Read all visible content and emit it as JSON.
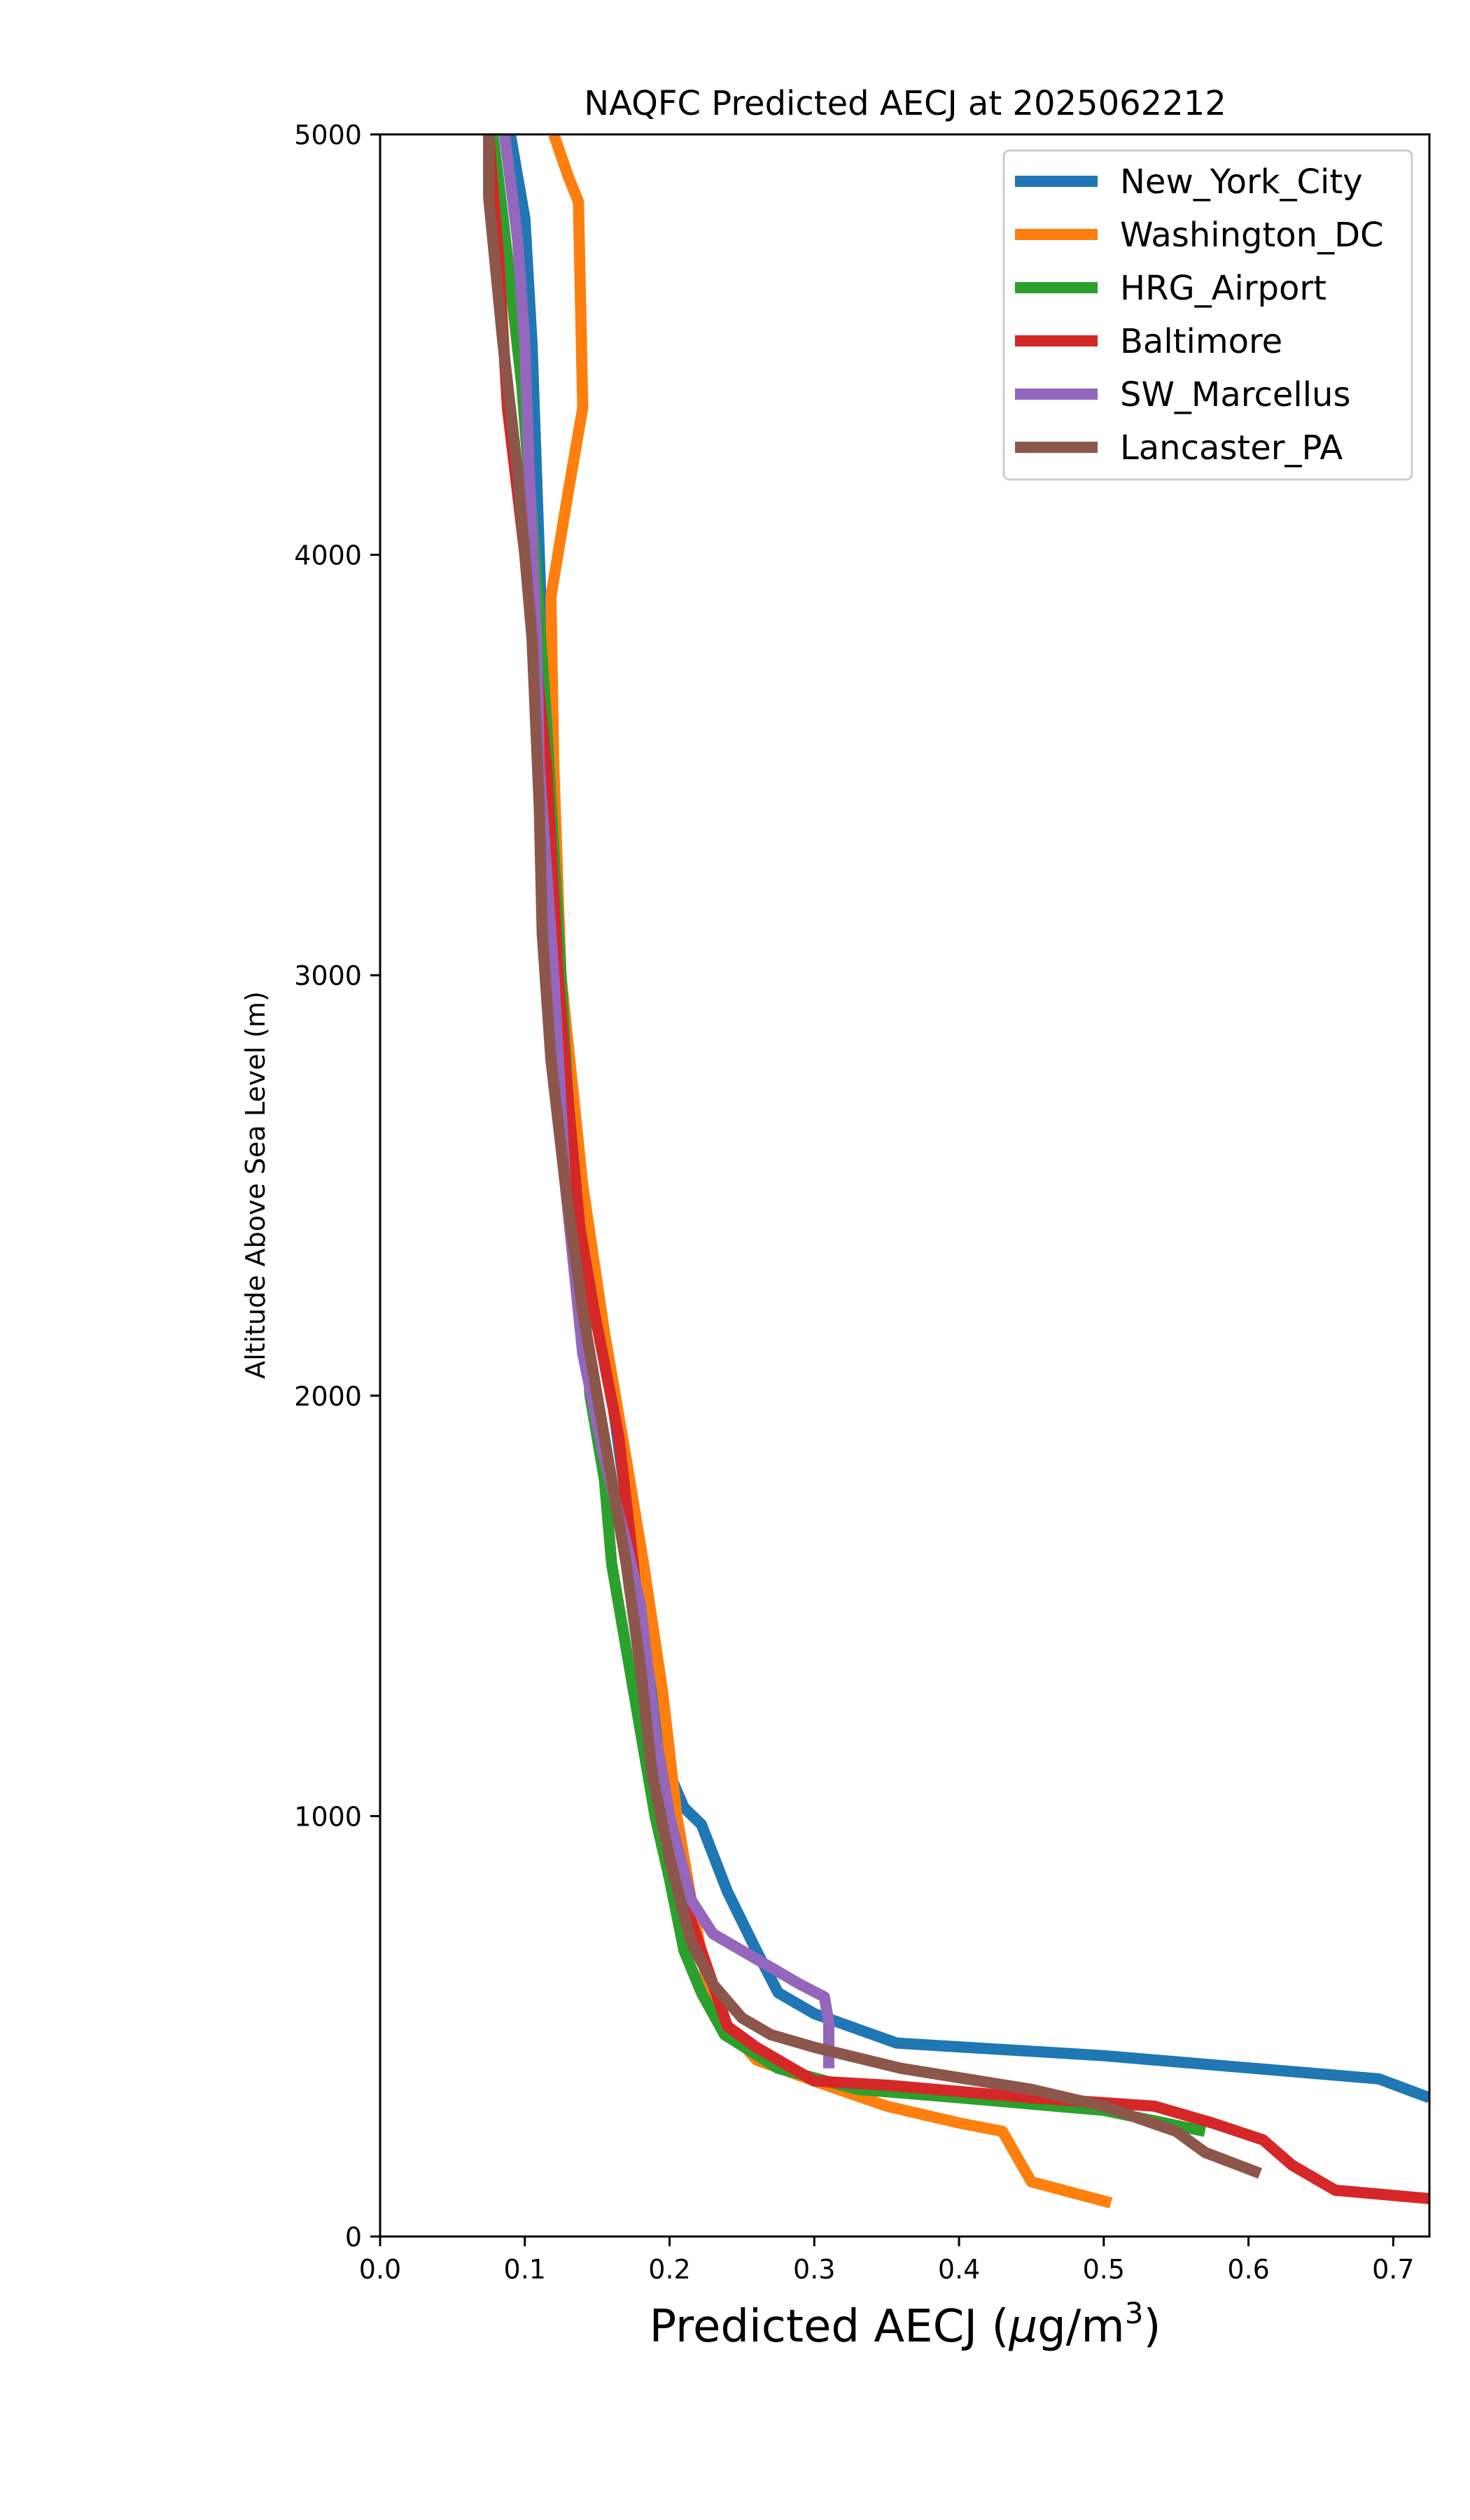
{
  "chart_data": {
    "type": "line",
    "title": "NAQFC Predicted AECJ at 2025062212",
    "xlabel": "Predicted AECJ (μg/m³)",
    "xlabel_main": "Predicted AECJ (",
    "xlabel_mu": "μ",
    "xlabel_unit": "g/m",
    "xlabel_sup": "3",
    "xlabel_close": ")",
    "ylabel": "Altitude Above Sea Level (m)",
    "xlim": [
      0.0,
      0.725
    ],
    "ylim": [
      0,
      5000
    ],
    "xticks": [
      0.0,
      0.1,
      0.2,
      0.3,
      0.4,
      0.5,
      0.6,
      0.7
    ],
    "xtick_labels": [
      "0.0",
      "0.1",
      "0.2",
      "0.3",
      "0.4",
      "0.5",
      "0.6",
      "0.7"
    ],
    "yticks": [
      0,
      1000,
      2000,
      3000,
      4000,
      5000
    ],
    "ytick_labels": [
      "0",
      "1000",
      "2000",
      "3000",
      "4000",
      "5000"
    ],
    "grid": false,
    "legend_position": "top-right",
    "series": [
      {
        "name": "New_York_City",
        "color": "#1f77b4",
        "x": [
          0.09,
          0.095,
          0.1,
          0.105,
          0.111,
          0.116,
          0.125,
          0.135,
          0.15,
          0.16,
          0.17,
          0.18,
          0.19,
          0.2,
          0.21,
          0.222,
          0.24,
          0.26,
          0.275,
          0.3,
          0.357,
          0.5,
          0.69,
          0.725
        ],
        "y": [
          5000,
          4900,
          4800,
          4500,
          3900,
          3500,
          3000,
          2600,
          2200,
          2000,
          1750,
          1500,
          1250,
          1100,
          1020,
          980,
          820,
          680,
          580,
          530,
          460,
          430,
          375,
          330
        ]
      },
      {
        "name": "Washington_DC",
        "color": "#ff7f0e",
        "x": [
          0.12,
          0.13,
          0.137,
          0.14,
          0.13,
          0.118,
          0.12,
          0.125,
          0.14,
          0.155,
          0.17,
          0.182,
          0.195,
          0.205,
          0.215,
          0.225,
          0.24,
          0.26,
          0.3,
          0.35,
          0.4,
          0.43,
          0.44,
          0.45,
          0.505
        ],
        "y": [
          5000,
          4900,
          4840,
          4350,
          4150,
          3900,
          3500,
          3000,
          2500,
          2150,
          1850,
          1600,
          1300,
          1000,
          800,
          620,
          500,
          420,
          370,
          310,
          270,
          250,
          190,
          130,
          80
        ]
      },
      {
        "name": "HRG_Airport",
        "color": "#2ca02c",
        "x": [
          0.078,
          0.085,
          0.098,
          0.107,
          0.115,
          0.12,
          0.125,
          0.13,
          0.14,
          0.145,
          0.155,
          0.16,
          0.175,
          0.19,
          0.2,
          0.21,
          0.222,
          0.238,
          0.275,
          0.33,
          0.4,
          0.5,
          0.57
        ],
        "y": [
          5000,
          4800,
          4400,
          4000,
          3600,
          3300,
          3000,
          2700,
          2300,
          2000,
          1800,
          1600,
          1300,
          1000,
          850,
          680,
          580,
          480,
          400,
          350,
          330,
          300,
          250
        ]
      },
      {
        "name": "Baltimore",
        "color": "#d62728",
        "x": [
          0.075,
          0.082,
          0.088,
          0.1,
          0.115,
          0.123,
          0.13,
          0.138,
          0.148,
          0.165,
          0.175,
          0.182,
          0.19,
          0.2,
          0.21,
          0.225,
          0.24,
          0.26,
          0.3,
          0.35,
          0.45,
          0.535,
          0.575,
          0.61,
          0.63,
          0.66,
          0.725
        ],
        "y": [
          5000,
          4700,
          4350,
          4000,
          3500,
          3000,
          2700,
          2400,
          2200,
          1900,
          1600,
          1350,
          1200,
          1000,
          800,
          650,
          500,
          450,
          370,
          360,
          330,
          310,
          270,
          230,
          170,
          110,
          90
        ]
      },
      {
        "name": "SW_Marcellus",
        "color": "#9467bd",
        "x": [
          0.086,
          0.095,
          0.1,
          0.103,
          0.108,
          0.11,
          0.12,
          0.128,
          0.14,
          0.155,
          0.17,
          0.18,
          0.185,
          0.19,
          0.2,
          0.215,
          0.23,
          0.265,
          0.29,
          0.307,
          0.31,
          0.31
        ],
        "y": [
          5000,
          4750,
          4500,
          4200,
          3800,
          3500,
          3000,
          2500,
          2100,
          1850,
          1650,
          1500,
          1350,
          1200,
          1000,
          800,
          720,
          650,
          600,
          570,
          510,
          400
        ]
      },
      {
        "name": "Lancaster_PA",
        "color": "#8c564b",
        "x": [
          0.075,
          0.075,
          0.085,
          0.095,
          0.105,
          0.11,
          0.112,
          0.118,
          0.128,
          0.14,
          0.155,
          0.17,
          0.18,
          0.188,
          0.2,
          0.215,
          0.23,
          0.25,
          0.27,
          0.3,
          0.36,
          0.45,
          0.5,
          0.55,
          0.57,
          0.608
        ],
        "y": [
          5000,
          4850,
          4500,
          4200,
          3800,
          3400,
          3100,
          2800,
          2500,
          2200,
          1900,
          1600,
          1350,
          1100,
          900,
          700,
          600,
          520,
          480,
          450,
          400,
          350,
          310,
          250,
          200,
          150
        ]
      }
    ]
  }
}
